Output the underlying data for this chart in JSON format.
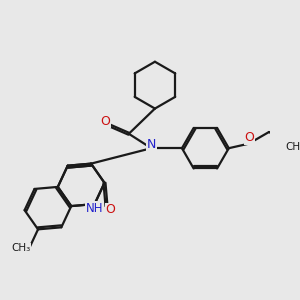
{
  "bg_color": "#e8e8e8",
  "bond_color": "#1a1a1a",
  "N_color": "#2020cc",
  "O_color": "#cc1010",
  "line_width": 1.6,
  "dbo": 0.022,
  "figsize": [
    3.0,
    3.0
  ],
  "dpi": 100,
  "xlim": [
    0,
    3.0
  ],
  "ylim": [
    0,
    3.0
  ]
}
